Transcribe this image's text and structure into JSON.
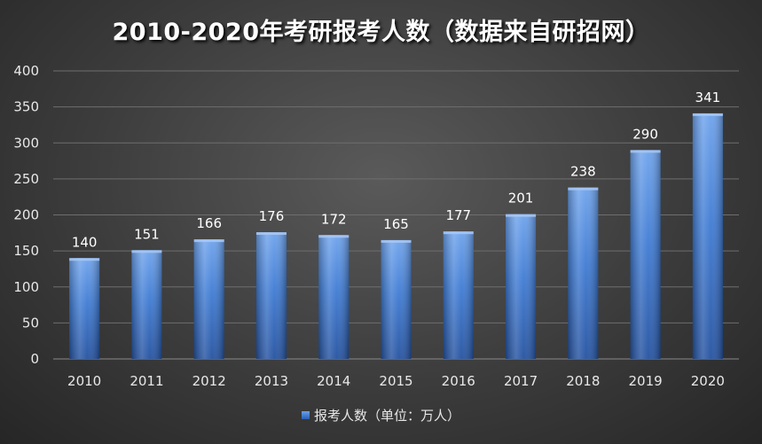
{
  "chart_data": {
    "type": "bar",
    "title": "2010-2020年考研报考人数（数据来自研招网）",
    "categories": [
      "2010",
      "2011",
      "2012",
      "2013",
      "2014",
      "2015",
      "2016",
      "2017",
      "2018",
      "2019",
      "2020"
    ],
    "series": [
      {
        "name": "报考人数（单位：万人）",
        "values": [
          140,
          151,
          166,
          176,
          172,
          165,
          177,
          201,
          238,
          290,
          341
        ]
      }
    ],
    "ylim": [
      0,
      400
    ],
    "yticks": [
      0,
      50,
      100,
      150,
      200,
      250,
      300,
      350,
      400
    ],
    "grid": true,
    "legend": "bottom",
    "data_labels": true,
    "colors": {
      "bar_top": "#6ea3ec",
      "bar_mid": "#3f7bd3",
      "bar_bottom": "#2452a0",
      "grid": "#6e6e6e",
      "text": "#ffffff"
    }
  }
}
